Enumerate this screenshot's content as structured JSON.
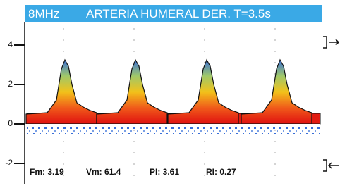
{
  "header": {
    "frequency": "8MHz",
    "title": "ARTERIA HUMERAL DER. T=3.5s"
  },
  "axis": {
    "ticks": [
      4,
      2,
      0,
      -2
    ]
  },
  "stats": [
    "Fm: 3.19",
    "Vm: 61.4",
    "PI: 3.61",
    "RI: 0.27"
  ]
}
